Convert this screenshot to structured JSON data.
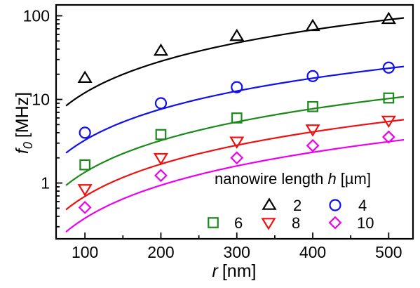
{
  "chart_data": {
    "type": "scatter",
    "xlabel": {
      "var": "r",
      "unit": "[nm]"
    },
    "ylabel": {
      "var": "f",
      "sub": "0",
      "unit": "[MHz]"
    },
    "xlim": [
      62,
      532
    ],
    "ylim": [
      0.215,
      135
    ],
    "yscale": "log",
    "grid": false,
    "x_ticks": [
      100,
      200,
      300,
      400,
      500
    ],
    "x_tick_labels": [
      "100",
      "200",
      "300",
      "400",
      "500"
    ],
    "y_ticks": [
      1,
      10,
      100
    ],
    "y_tick_labels": [
      "1",
      "10",
      "100"
    ],
    "legend": {
      "title_prefix": "nanowire length ",
      "title_var": "h",
      "title_unit": "[µm]",
      "placement": "bottom-right"
    },
    "series": [
      {
        "name": "2",
        "marker": "triangle-up",
        "color": "#000000",
        "x": [
          100,
          200,
          300,
          400,
          500
        ],
        "y": [
          18,
          38,
          57,
          75,
          91
        ],
        "fit": {
          "x0": 75,
          "x1": 520,
          "a": 0.038,
          "p": 1.25
        }
      },
      {
        "name": "4",
        "marker": "circle",
        "color": "#1010ee",
        "x": [
          100,
          200,
          300,
          400,
          500
        ],
        "y": [
          4.0,
          9.0,
          14,
          19,
          24
        ],
        "fit": {
          "x0": 75,
          "x1": 520,
          "a": 0.0113,
          "p": 1.23
        }
      },
      {
        "name": "6",
        "marker": "square",
        "color": "#1a8a1a",
        "x": [
          100,
          200,
          300,
          400,
          500
        ],
        "y": [
          1.65,
          3.8,
          6.0,
          8.2,
          10.4
        ],
        "fit": {
          "x0": 75,
          "x1": 520,
          "a": 0.00407,
          "p": 1.26
        }
      },
      {
        "name": "8",
        "marker": "triangle-down",
        "color": "#ee1111",
        "x": [
          100,
          200,
          300,
          400,
          500
        ],
        "y": [
          0.85,
          2.0,
          3.15,
          4.4,
          5.6
        ],
        "fit": {
          "x0": 75,
          "x1": 520,
          "a": 0.00191,
          "p": 1.28
        }
      },
      {
        "name": "10",
        "marker": "diamond",
        "color": "#ee00ee",
        "x": [
          100,
          200,
          300,
          400,
          500
        ],
        "y": [
          0.51,
          1.23,
          2.0,
          2.8,
          3.55
        ],
        "fit": {
          "x0": 75,
          "x1": 520,
          "a": 0.00091,
          "p": 1.31
        }
      }
    ]
  }
}
